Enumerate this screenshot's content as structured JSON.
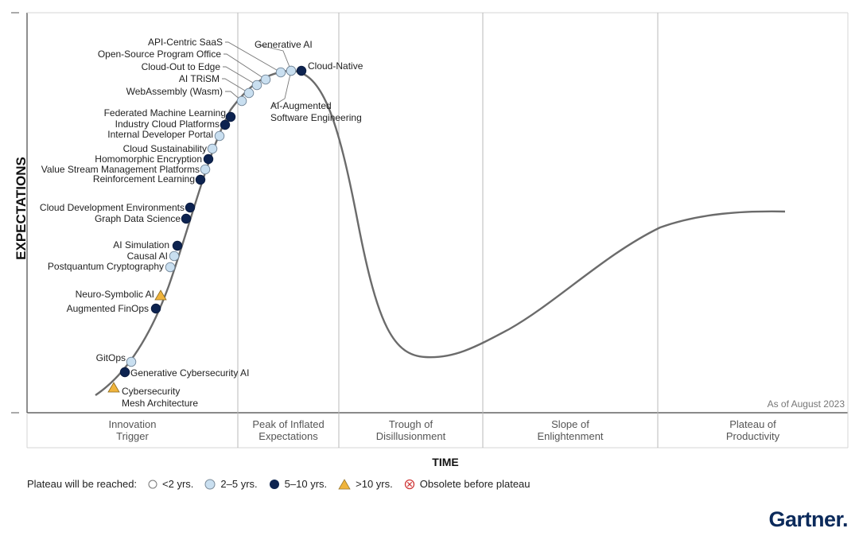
{
  "chart_data": {
    "type": "scatter",
    "xlabel": "TIME",
    "ylabel": "EXPECTATIONS",
    "annotation": "As of August 2023",
    "phases": [
      "Innovation\nTrigger",
      "Peak of Inflated\nExpectations",
      "Trough of\nDisillusionment",
      "Slope of\nEnlightenment",
      "Plateau of\nProductivity"
    ],
    "colors": {
      "c2to5": "#c9dff0",
      "c5to10": "#0d2350",
      "gt10": "#f0b43c",
      "curve": "#6b6b6b"
    },
    "points": [
      {
        "name": "Cybersecurity\nMesh Architecture",
        "cat": "gt10"
      },
      {
        "name": "Generative Cybersecurity AI",
        "cat": "c5to10"
      },
      {
        "name": "GitOps",
        "cat": "c2to5"
      },
      {
        "name": "Augmented FinOps",
        "cat": "c5to10"
      },
      {
        "name": "Neuro-Symbolic AI",
        "cat": "gt10"
      },
      {
        "name": "Postquantum Cryptography",
        "cat": "c2to5"
      },
      {
        "name": "Causal AI",
        "cat": "c2to5"
      },
      {
        "name": "AI Simulation",
        "cat": "c5to10"
      },
      {
        "name": "Graph Data Science",
        "cat": "c5to10"
      },
      {
        "name": "Cloud Development Environments",
        "cat": "c5to10"
      },
      {
        "name": "Reinforcement Learning",
        "cat": "c5to10"
      },
      {
        "name": "Value Stream Management Platforms",
        "cat": "c2to5"
      },
      {
        "name": "Homomorphic Encryption",
        "cat": "c5to10"
      },
      {
        "name": "Cloud Sustainability",
        "cat": "c2to5"
      },
      {
        "name": "Internal Developer Portal",
        "cat": "c2to5"
      },
      {
        "name": "Industry Cloud Platforms",
        "cat": "c5to10"
      },
      {
        "name": "Federated Machine Learning",
        "cat": "c5to10"
      },
      {
        "name": "WebAssembly (Wasm)",
        "cat": "c2to5"
      },
      {
        "name": "AI TRiSM",
        "cat": "c2to5"
      },
      {
        "name": "Cloud-Out to Edge",
        "cat": "c2to5"
      },
      {
        "name": "Open-Source Program Office",
        "cat": "c2to5"
      },
      {
        "name": "API-Centric SaaS",
        "cat": "c2to5"
      },
      {
        "name": "Generative AI",
        "cat": "c2to5"
      },
      {
        "name": "AI-Augmented\nSoftware Engineering",
        "cat": "c2to5"
      },
      {
        "name": "Cloud-Native",
        "cat": "c5to10"
      }
    ]
  },
  "legend": {
    "title": "Plateau will be reached:",
    "items": [
      "<2 yrs.",
      "2–5 yrs.",
      "5–10 yrs.",
      ">10 yrs.",
      "Obsolete before plateau"
    ]
  },
  "brand": "Gartner."
}
